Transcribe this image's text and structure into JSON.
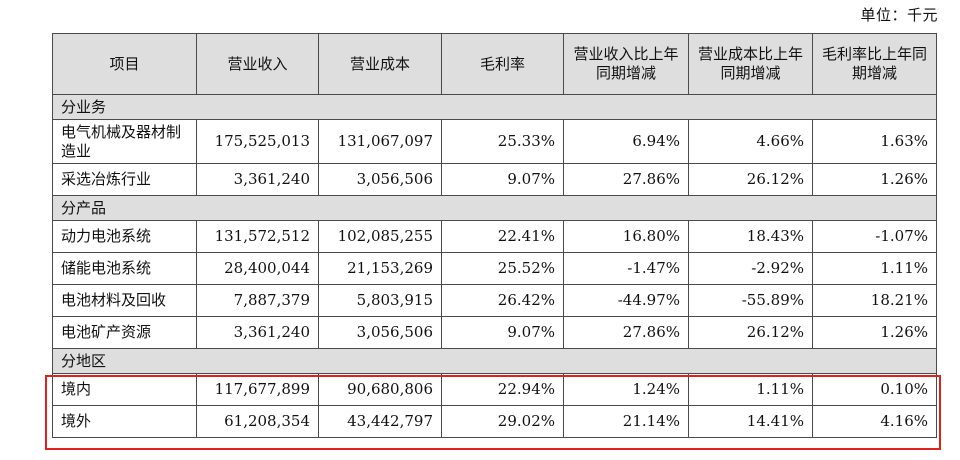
{
  "unit_label": "单位：千元",
  "headers": [
    "项目",
    "营业收入",
    "营业成本",
    "毛利率",
    "营业收入比上年同期增减",
    "营业成本比上年同期增减",
    "毛利率比上年同期增减"
  ],
  "sections": [
    {
      "title": "分业务",
      "rows": [
        {
          "item": "电气机械及器材制造业",
          "revenue": "175,525,013",
          "cost": "131,067,097",
          "margin": "25.33%",
          "rev_change": "6.94%",
          "cost_change": "4.66%",
          "margin_change": "1.63%"
        },
        {
          "item": "采选冶炼行业",
          "revenue": "3,361,240",
          "cost": "3,056,506",
          "margin": "9.07%",
          "rev_change": "27.86%",
          "cost_change": "26.12%",
          "margin_change": "1.26%"
        }
      ]
    },
    {
      "title": "分产品",
      "rows": [
        {
          "item": "动力电池系统",
          "revenue": "131,572,512",
          "cost": "102,085,255",
          "margin": "22.41%",
          "rev_change": "16.80%",
          "cost_change": "18.43%",
          "margin_change": "-1.07%"
        },
        {
          "item": "储能电池系统",
          "revenue": "28,400,044",
          "cost": "21,153,269",
          "margin": "25.52%",
          "rev_change": "-1.47%",
          "cost_change": "-2.92%",
          "margin_change": "1.11%"
        },
        {
          "item": "电池材料及回收",
          "revenue": "7,887,379",
          "cost": "5,803,915",
          "margin": "26.42%",
          "rev_change": "-44.97%",
          "cost_change": "-55.89%",
          "margin_change": "18.21%"
        },
        {
          "item": "电池矿产资源",
          "revenue": "3,361,240",
          "cost": "3,056,506",
          "margin": "9.07%",
          "rev_change": "27.86%",
          "cost_change": "26.12%",
          "margin_change": "1.26%"
        }
      ]
    },
    {
      "title": "分地区",
      "rows": [
        {
          "item": "境内",
          "revenue": "117,677,899",
          "cost": "90,680,806",
          "margin": "22.94%",
          "rev_change": "1.24%",
          "cost_change": "1.11%",
          "margin_change": "0.10%"
        },
        {
          "item": "境外",
          "revenue": "61,208,354",
          "cost": "43,442,797",
          "margin": "29.02%",
          "rev_change": "21.14%",
          "cost_change": "14.41%",
          "margin_change": "4.16%"
        }
      ]
    }
  ],
  "highlight_color": "#e0211c",
  "header_bg": "#dedede"
}
